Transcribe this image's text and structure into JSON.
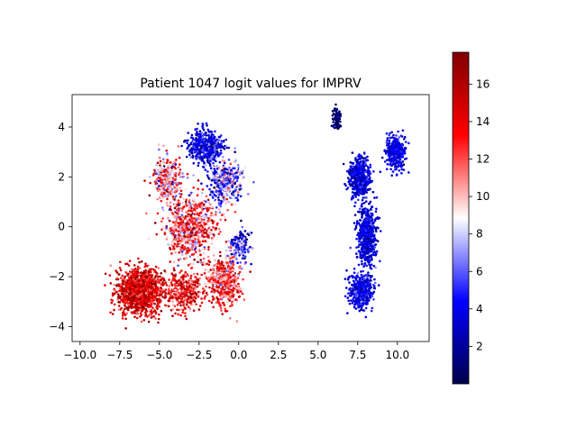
{
  "chart_data": {
    "type": "scatter",
    "title": "Patient 1047 logit values for IMPRV",
    "xlabel": "",
    "ylabel": "",
    "xlim": [
      -10.5,
      12
    ],
    "ylim": [
      -4.6,
      5.3
    ],
    "xticks": [
      -10.0,
      -7.5,
      -5.0,
      -2.5,
      0.0,
      2.5,
      5.0,
      7.5,
      10.0
    ],
    "xtick_labels": [
      "−10.0",
      "−7.5",
      "−5.0",
      "−2.5",
      "0.0",
      "2.5",
      "5.0",
      "7.5",
      "10.0"
    ],
    "yticks": [
      -4,
      -2,
      0,
      2,
      4
    ],
    "ytick_labels": [
      "−4",
      "−2",
      "0",
      "2",
      "4"
    ],
    "grid": false,
    "colorbar": {
      "cmap": "seismic",
      "min": 0,
      "max": 17.7,
      "ticks": [
        2,
        4,
        6,
        8,
        10,
        12,
        14,
        16
      ],
      "tick_labels": [
        "2",
        "4",
        "6",
        "8",
        "10",
        "12",
        "14",
        "16"
      ]
    },
    "clusters": [
      {
        "name": "",
        "center": [
          -6.2,
          -2.6
        ],
        "spread": [
          1.3,
          0.85
        ],
        "value_mean": 14.5,
        "value_sd": 2.0,
        "count": 1300
      },
      {
        "name": "",
        "center": [
          -3.4,
          -2.6
        ],
        "spread": [
          0.9,
          0.7
        ],
        "value_mean": 13.5,
        "value_sd": 2.2,
        "count": 420
      },
      {
        "name": "",
        "center": [
          -0.9,
          -2.2
        ],
        "spread": [
          0.85,
          0.9
        ],
        "value_mean": 12.0,
        "value_sd": 2.5,
        "count": 550
      },
      {
        "name": "",
        "center": [
          -3.0,
          0.0
        ],
        "spread": [
          1.4,
          1.0
        ],
        "value_mean": 11.5,
        "value_sd": 3.0,
        "count": 900
      },
      {
        "name": "",
        "center": [
          -4.5,
          1.9
        ],
        "spread": [
          0.8,
          0.8
        ],
        "value_mean": 10.5,
        "value_sd": 3.5,
        "count": 350
      },
      {
        "name": "",
        "center": [
          -0.8,
          1.8
        ],
        "spread": [
          1.0,
          0.8
        ],
        "value_mean": 6.5,
        "value_sd": 3.0,
        "count": 450
      },
      {
        "name": "",
        "center": [
          -2.1,
          3.2
        ],
        "spread": [
          0.9,
          0.55
        ],
        "value_mean": 4.0,
        "value_sd": 1.8,
        "count": 650
      },
      {
        "name": "",
        "center": [
          0.1,
          -0.7
        ],
        "spread": [
          0.55,
          0.5
        ],
        "value_mean": 5.5,
        "value_sd": 2.5,
        "count": 180
      },
      {
        "name": "",
        "center": [
          7.6,
          2.0
        ],
        "spread": [
          0.6,
          0.7
        ],
        "value_mean": 3.5,
        "value_sd": 1.2,
        "count": 500
      },
      {
        "name": "",
        "center": [
          9.9,
          3.0
        ],
        "spread": [
          0.5,
          0.55
        ],
        "value_mean": 3.8,
        "value_sd": 1.0,
        "count": 400
      },
      {
        "name": "",
        "center": [
          8.1,
          -0.4
        ],
        "spread": [
          0.55,
          1.2
        ],
        "value_mean": 3.5,
        "value_sd": 1.1,
        "count": 550
      },
      {
        "name": "",
        "center": [
          7.7,
          -2.6
        ],
        "spread": [
          0.65,
          0.6
        ],
        "value_mean": 3.7,
        "value_sd": 1.2,
        "count": 450
      },
      {
        "name": "",
        "center": [
          6.2,
          4.3
        ],
        "spread": [
          0.25,
          0.35
        ],
        "value_mean": 0.8,
        "value_sd": 0.8,
        "count": 100
      }
    ]
  }
}
